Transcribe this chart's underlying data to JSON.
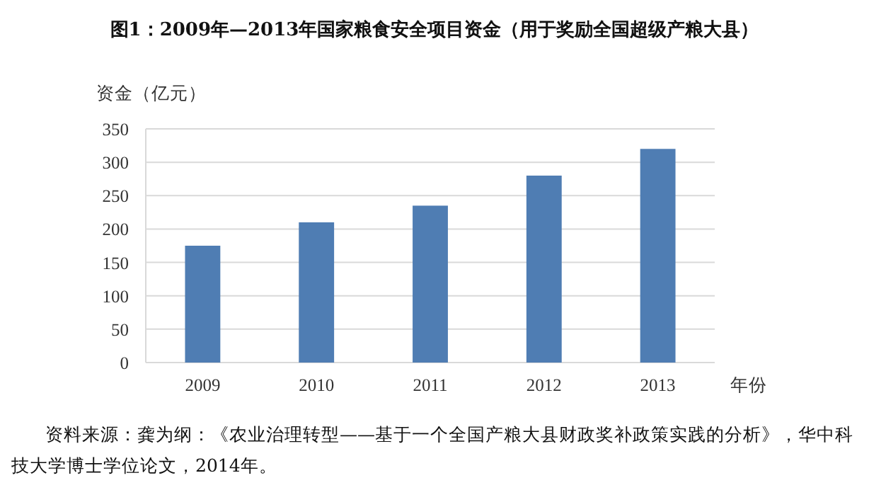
{
  "chart_data": {
    "type": "bar",
    "title": "图1：2009年—2013年国家粮食安全项目资金（用于奖励全国超级产粮大县）",
    "ylabel": "资金（亿元）",
    "xlabel": "年份",
    "categories": [
      "2009",
      "2010",
      "2011",
      "2012",
      "2013"
    ],
    "values": [
      175,
      210,
      235,
      280,
      320
    ],
    "color": "#4f7db3",
    "ylim": [
      0,
      350
    ],
    "yticks": [
      0,
      50,
      100,
      150,
      200,
      250,
      300,
      350
    ],
    "grid": "y",
    "annotations": [
      "资料来源：龚为纲：《农业治理转型——基于一个全国产粮大县财政奖补政策实践的分析》，华中科技大学博士学位论文，2014年。"
    ]
  }
}
